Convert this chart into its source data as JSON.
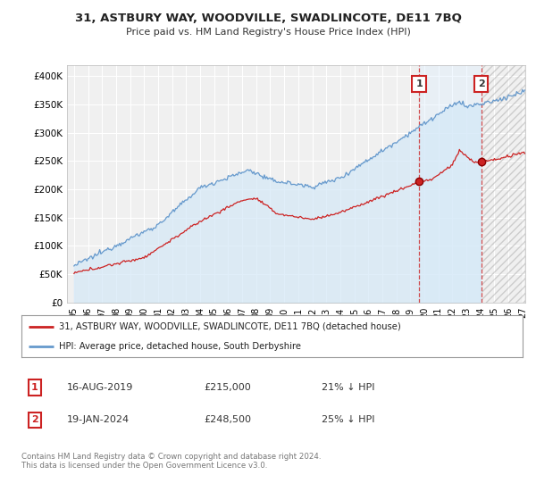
{
  "title": "31, ASTBURY WAY, WOODVILLE, SWADLINCOTE, DE11 7BQ",
  "subtitle": "Price paid vs. HM Land Registry's House Price Index (HPI)",
  "legend_line1": "31, ASTBURY WAY, WOODVILLE, SWADLINCOTE, DE11 7BQ (detached house)",
  "legend_line2": "HPI: Average price, detached house, South Derbyshire",
  "annotation1_date": "16-AUG-2019",
  "annotation1_price": "£215,000",
  "annotation1_hpi": "21% ↓ HPI",
  "annotation1_year": 2019.62,
  "annotation1_value": 215000,
  "annotation2_date": "19-JAN-2024",
  "annotation2_price": "£248,500",
  "annotation2_hpi": "25% ↓ HPI",
  "annotation2_year": 2024.05,
  "annotation2_value": 248500,
  "ylim_min": 0,
  "ylim_max": 420000,
  "xlim_min": 1994.5,
  "xlim_max": 2027.2,
  "background_color": "#ffffff",
  "plot_bg_color": "#f0f0f0",
  "grid_color": "#ffffff",
  "hpi_line_color": "#6699cc",
  "price_line_color": "#cc2222",
  "hpi_fill_color": "#d4e8f7",
  "annotation_box_color": "#cc2222",
  "yticks": [
    0,
    50000,
    100000,
    150000,
    200000,
    250000,
    300000,
    350000,
    400000
  ],
  "ytick_labels": [
    "£0",
    "£50K",
    "£100K",
    "£150K",
    "£200K",
    "£250K",
    "£300K",
    "£350K",
    "£400K"
  ],
  "xtick_years": [
    1995,
    1996,
    1997,
    1998,
    1999,
    2000,
    2001,
    2002,
    2003,
    2004,
    2005,
    2006,
    2007,
    2008,
    2009,
    2010,
    2011,
    2012,
    2013,
    2014,
    2015,
    2016,
    2017,
    2018,
    2019,
    2020,
    2021,
    2022,
    2023,
    2024,
    2025,
    2026,
    2027
  ],
  "copyright_text": "Contains HM Land Registry data © Crown copyright and database right 2024.\nThis data is licensed under the Open Government Licence v3.0."
}
